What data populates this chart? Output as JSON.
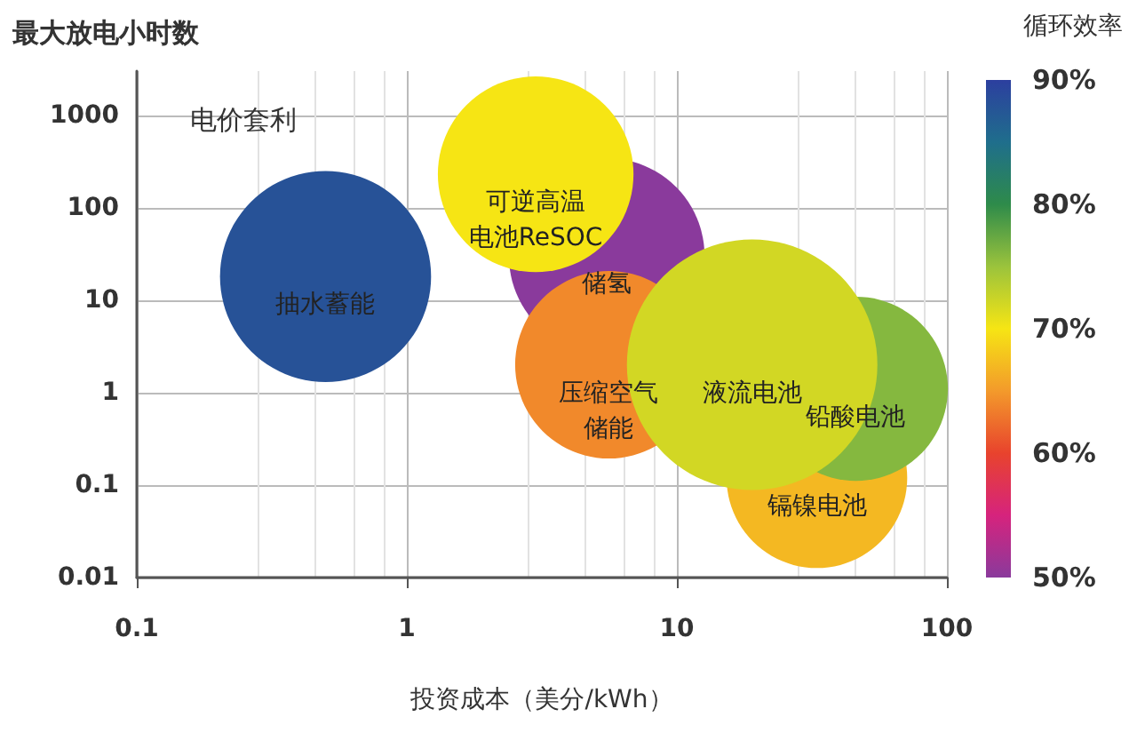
{
  "chart_data": {
    "type": "bubble",
    "xlabel": "投资成本（美分/kWh）",
    "ylabel": "最大放电小时数",
    "clabel": "循环效率",
    "log": "xy",
    "grid": true,
    "xlim": [
      0.1,
      100
    ],
    "xticks": [
      0.1,
      1,
      10,
      100
    ],
    "ylim": [
      0.01,
      3000
    ],
    "yticks": [
      0.01,
      0.1,
      1,
      10,
      100,
      1000
    ],
    "clim": [
      50,
      90
    ],
    "cticks": [
      {
        "value": 50,
        "label": "50%"
      },
      {
        "value": 60,
        "label": "60%"
      },
      {
        "value": 70,
        "label": "70%"
      },
      {
        "value": 80,
        "label": "80%"
      },
      {
        "value": 90,
        "label": "90%"
      }
    ],
    "x": [
      0.5,
      5.5,
      3,
      5.6,
      33,
      46,
      19
    ],
    "values": [
      18,
      30,
      230,
      2,
      0.12,
      1.1,
      2
    ],
    "sizes": [
      0.71,
      0.61,
      0.61,
      0.56,
      0.52,
      0.54,
      1
    ],
    "cvalues": [
      88,
      50,
      70,
      64,
      67,
      76,
      72
    ],
    "annotations": [
      "电价套利",
      {
        "text": "抽水蓄能",
        "x": 0.5,
        "y": 18
      },
      {
        "text": "储氢",
        "x": 5.5,
        "y": 30
      },
      {
        "text": "可逆高温电池ReSOC",
        "x": 3,
        "y": 230
      },
      {
        "text": "压缩空气储能",
        "x": 5.6,
        "y": 2
      },
      {
        "text": "镉镍电池",
        "x": 33,
        "y": 0.12
      },
      {
        "text": "铅酸电池",
        "x": 46,
        "y": 1.1
      },
      {
        "text": "液流电池",
        "x": 19,
        "y": 2
      }
    ]
  }
}
